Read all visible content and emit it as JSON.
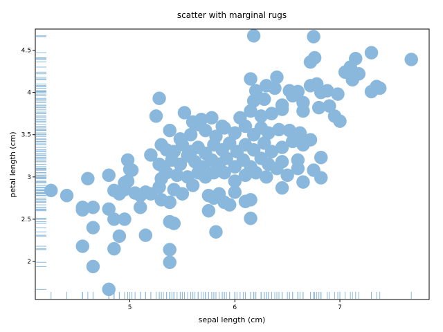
{
  "chart_data": {
    "type": "scatter",
    "title": "scatter with marginal rugs",
    "xlabel": "sepal length (cm)",
    "ylabel": "petal length (cm)",
    "xlim": [
      4.1,
      7.85
    ],
    "ylim": [
      1.55,
      4.75
    ],
    "xticks": [
      5,
      6,
      7
    ],
    "xtick_labels": [
      "5",
      "6",
      "7"
    ],
    "yticks": [
      2,
      2.5,
      3,
      3.5,
      4,
      4.5
    ],
    "ytick_labels": [
      "2",
      "2.5",
      "3",
      "3.5",
      "4",
      "4.5"
    ],
    "grid": false,
    "marginal_rugs": [
      "x",
      "y"
    ],
    "point_color": "#89b8dc",
    "points": [
      [
        4.8,
        1.67
      ],
      [
        4.65,
        1.94
      ],
      [
        5.38,
        1.99
      ],
      [
        4.55,
        2.18
      ],
      [
        5.38,
        2.14
      ],
      [
        4.85,
        2.15
      ],
      [
        4.65,
        2.4
      ],
      [
        4.9,
        2.3
      ],
      [
        5.15,
        2.31
      ],
      [
        5.82,
        2.35
      ],
      [
        5.38,
        2.47
      ],
      [
        5.42,
        2.45
      ],
      [
        6.15,
        2.51
      ],
      [
        4.85,
        2.5
      ],
      [
        4.95,
        2.5
      ],
      [
        4.55,
        2.61
      ],
      [
        4.55,
        2.64
      ],
      [
        4.65,
        2.64
      ],
      [
        4.8,
        2.62
      ],
      [
        5.1,
        2.64
      ],
      [
        5.2,
        2.8
      ],
      [
        5.3,
        2.73
      ],
      [
        5.38,
        2.7
      ],
      [
        5.5,
        2.8
      ],
      [
        5.75,
        2.6
      ],
      [
        5.9,
        2.7
      ],
      [
        5.95,
        2.67
      ],
      [
        6.1,
        2.71
      ],
      [
        6.15,
        2.73
      ],
      [
        4.25,
        2.84
      ],
      [
        4.4,
        2.78
      ],
      [
        4.85,
        2.84
      ],
      [
        4.9,
        2.8
      ],
      [
        4.95,
        2.85
      ],
      [
        5.05,
        2.81
      ],
      [
        5.1,
        2.78
      ],
      [
        5.15,
        2.82
      ],
      [
        5.28,
        2.88
      ],
      [
        5.42,
        2.85
      ],
      [
        5.6,
        2.9
      ],
      [
        5.75,
        2.78
      ],
      [
        5.8,
        2.75
      ],
      [
        5.85,
        2.8
      ],
      [
        6.0,
        2.82
      ],
      [
        6.45,
        2.87
      ],
      [
        6.65,
        2.94
      ],
      [
        6.82,
        2.99
      ],
      [
        4.6,
        2.98
      ],
      [
        4.8,
        3.02
      ],
      [
        4.98,
        2.95
      ],
      [
        5.3,
        2.98
      ],
      [
        5.35,
        3.05
      ],
      [
        5.45,
        3.02
      ],
      [
        5.55,
        3.0
      ],
      [
        5.65,
        3.05
      ],
      [
        5.72,
        3.0
      ],
      [
        5.8,
        3.05
      ],
      [
        5.9,
        3.05
      ],
      [
        6.0,
        2.95
      ],
      [
        6.1,
        3.02
      ],
      [
        6.2,
        3.05
      ],
      [
        6.3,
        3.0
      ],
      [
        6.4,
        3.1
      ],
      [
        6.5,
        3.02
      ],
      [
        6.6,
        3.1
      ],
      [
        6.75,
        3.08
      ],
      [
        4.98,
        3.2
      ],
      [
        5.0,
        3.09
      ],
      [
        5.2,
        3.26
      ],
      [
        5.28,
        3.15
      ],
      [
        5.32,
        3.12
      ],
      [
        5.4,
        3.2
      ],
      [
        5.48,
        3.15
      ],
      [
        5.55,
        3.25
      ],
      [
        5.62,
        3.18
      ],
      [
        5.7,
        3.12
      ],
      [
        5.78,
        3.2
      ],
      [
        5.85,
        3.15
      ],
      [
        5.92,
        3.22
      ],
      [
        6.0,
        3.12
      ],
      [
        6.08,
        3.2
      ],
      [
        6.15,
        3.12
      ],
      [
        6.25,
        3.22
      ],
      [
        6.32,
        3.15
      ],
      [
        6.45,
        3.18
      ],
      [
        6.6,
        3.2
      ],
      [
        6.82,
        3.23
      ],
      [
        5.3,
        3.38
      ],
      [
        5.35,
        3.32
      ],
      [
        5.42,
        3.3
      ],
      [
        5.5,
        3.38
      ],
      [
        5.58,
        3.3
      ],
      [
        5.65,
        3.35
      ],
      [
        5.72,
        3.28
      ],
      [
        5.8,
        3.38
      ],
      [
        5.88,
        3.32
      ],
      [
        5.95,
        3.4
      ],
      [
        6.02,
        3.3
      ],
      [
        6.1,
        3.38
      ],
      [
        6.18,
        3.32
      ],
      [
        6.28,
        3.4
      ],
      [
        6.35,
        3.3
      ],
      [
        6.45,
        3.35
      ],
      [
        6.55,
        3.42
      ],
      [
        6.65,
        3.38
      ],
      [
        6.72,
        3.44
      ],
      [
        5.38,
        3.55
      ],
      [
        5.48,
        3.45
      ],
      [
        5.58,
        3.5
      ],
      [
        5.65,
        3.62
      ],
      [
        5.72,
        3.55
      ],
      [
        5.82,
        3.48
      ],
      [
        5.9,
        3.58
      ],
      [
        6.0,
        3.52
      ],
      [
        6.1,
        3.6
      ],
      [
        6.18,
        3.5
      ],
      [
        6.25,
        3.58
      ],
      [
        6.32,
        3.52
      ],
      [
        6.42,
        3.56
      ],
      [
        6.52,
        3.55
      ],
      [
        6.62,
        3.52
      ],
      [
        5.25,
        3.72
      ],
      [
        5.52,
        3.76
      ],
      [
        5.6,
        3.65
      ],
      [
        5.68,
        3.68
      ],
      [
        5.78,
        3.7
      ],
      [
        5.88,
        3.6
      ],
      [
        6.05,
        3.7
      ],
      [
        6.15,
        3.78
      ],
      [
        6.25,
        3.72
      ],
      [
        6.35,
        3.75
      ],
      [
        6.45,
        3.8
      ],
      [
        6.65,
        3.78
      ],
      [
        6.95,
        3.72
      ],
      [
        7.0,
        3.66
      ],
      [
        6.18,
        3.9
      ],
      [
        6.28,
        3.92
      ],
      [
        6.45,
        3.85
      ],
      [
        6.55,
        3.96
      ],
      [
        6.65,
        3.88
      ],
      [
        6.8,
        3.82
      ],
      [
        6.9,
        3.84
      ],
      [
        6.98,
        3.98
      ],
      [
        5.28,
        3.93
      ],
      [
        6.2,
        4.02
      ],
      [
        6.3,
        4.08
      ],
      [
        6.38,
        4.05
      ],
      [
        6.52,
        4.02
      ],
      [
        6.6,
        4.01
      ],
      [
        6.72,
        4.08
      ],
      [
        6.78,
        4.1
      ],
      [
        6.82,
        4.0
      ],
      [
        6.88,
        4.02
      ],
      [
        7.12,
        4.15
      ],
      [
        7.18,
        4.22
      ],
      [
        7.1,
        4.3
      ],
      [
        7.05,
        4.24
      ],
      [
        7.3,
        4.01
      ],
      [
        7.35,
        4.07
      ],
      [
        7.38,
        4.05
      ],
      [
        6.15,
        4.16
      ],
      [
        6.4,
        4.18
      ],
      [
        6.72,
        4.36
      ],
      [
        6.76,
        4.41
      ],
      [
        7.15,
        4.4
      ],
      [
        7.3,
        4.47
      ],
      [
        7.68,
        4.39
      ],
      [
        6.75,
        4.66
      ],
      [
        6.18,
        4.67
      ],
      [
        4.95,
        2.93
      ],
      [
        5.02,
        3.08
      ]
    ]
  }
}
